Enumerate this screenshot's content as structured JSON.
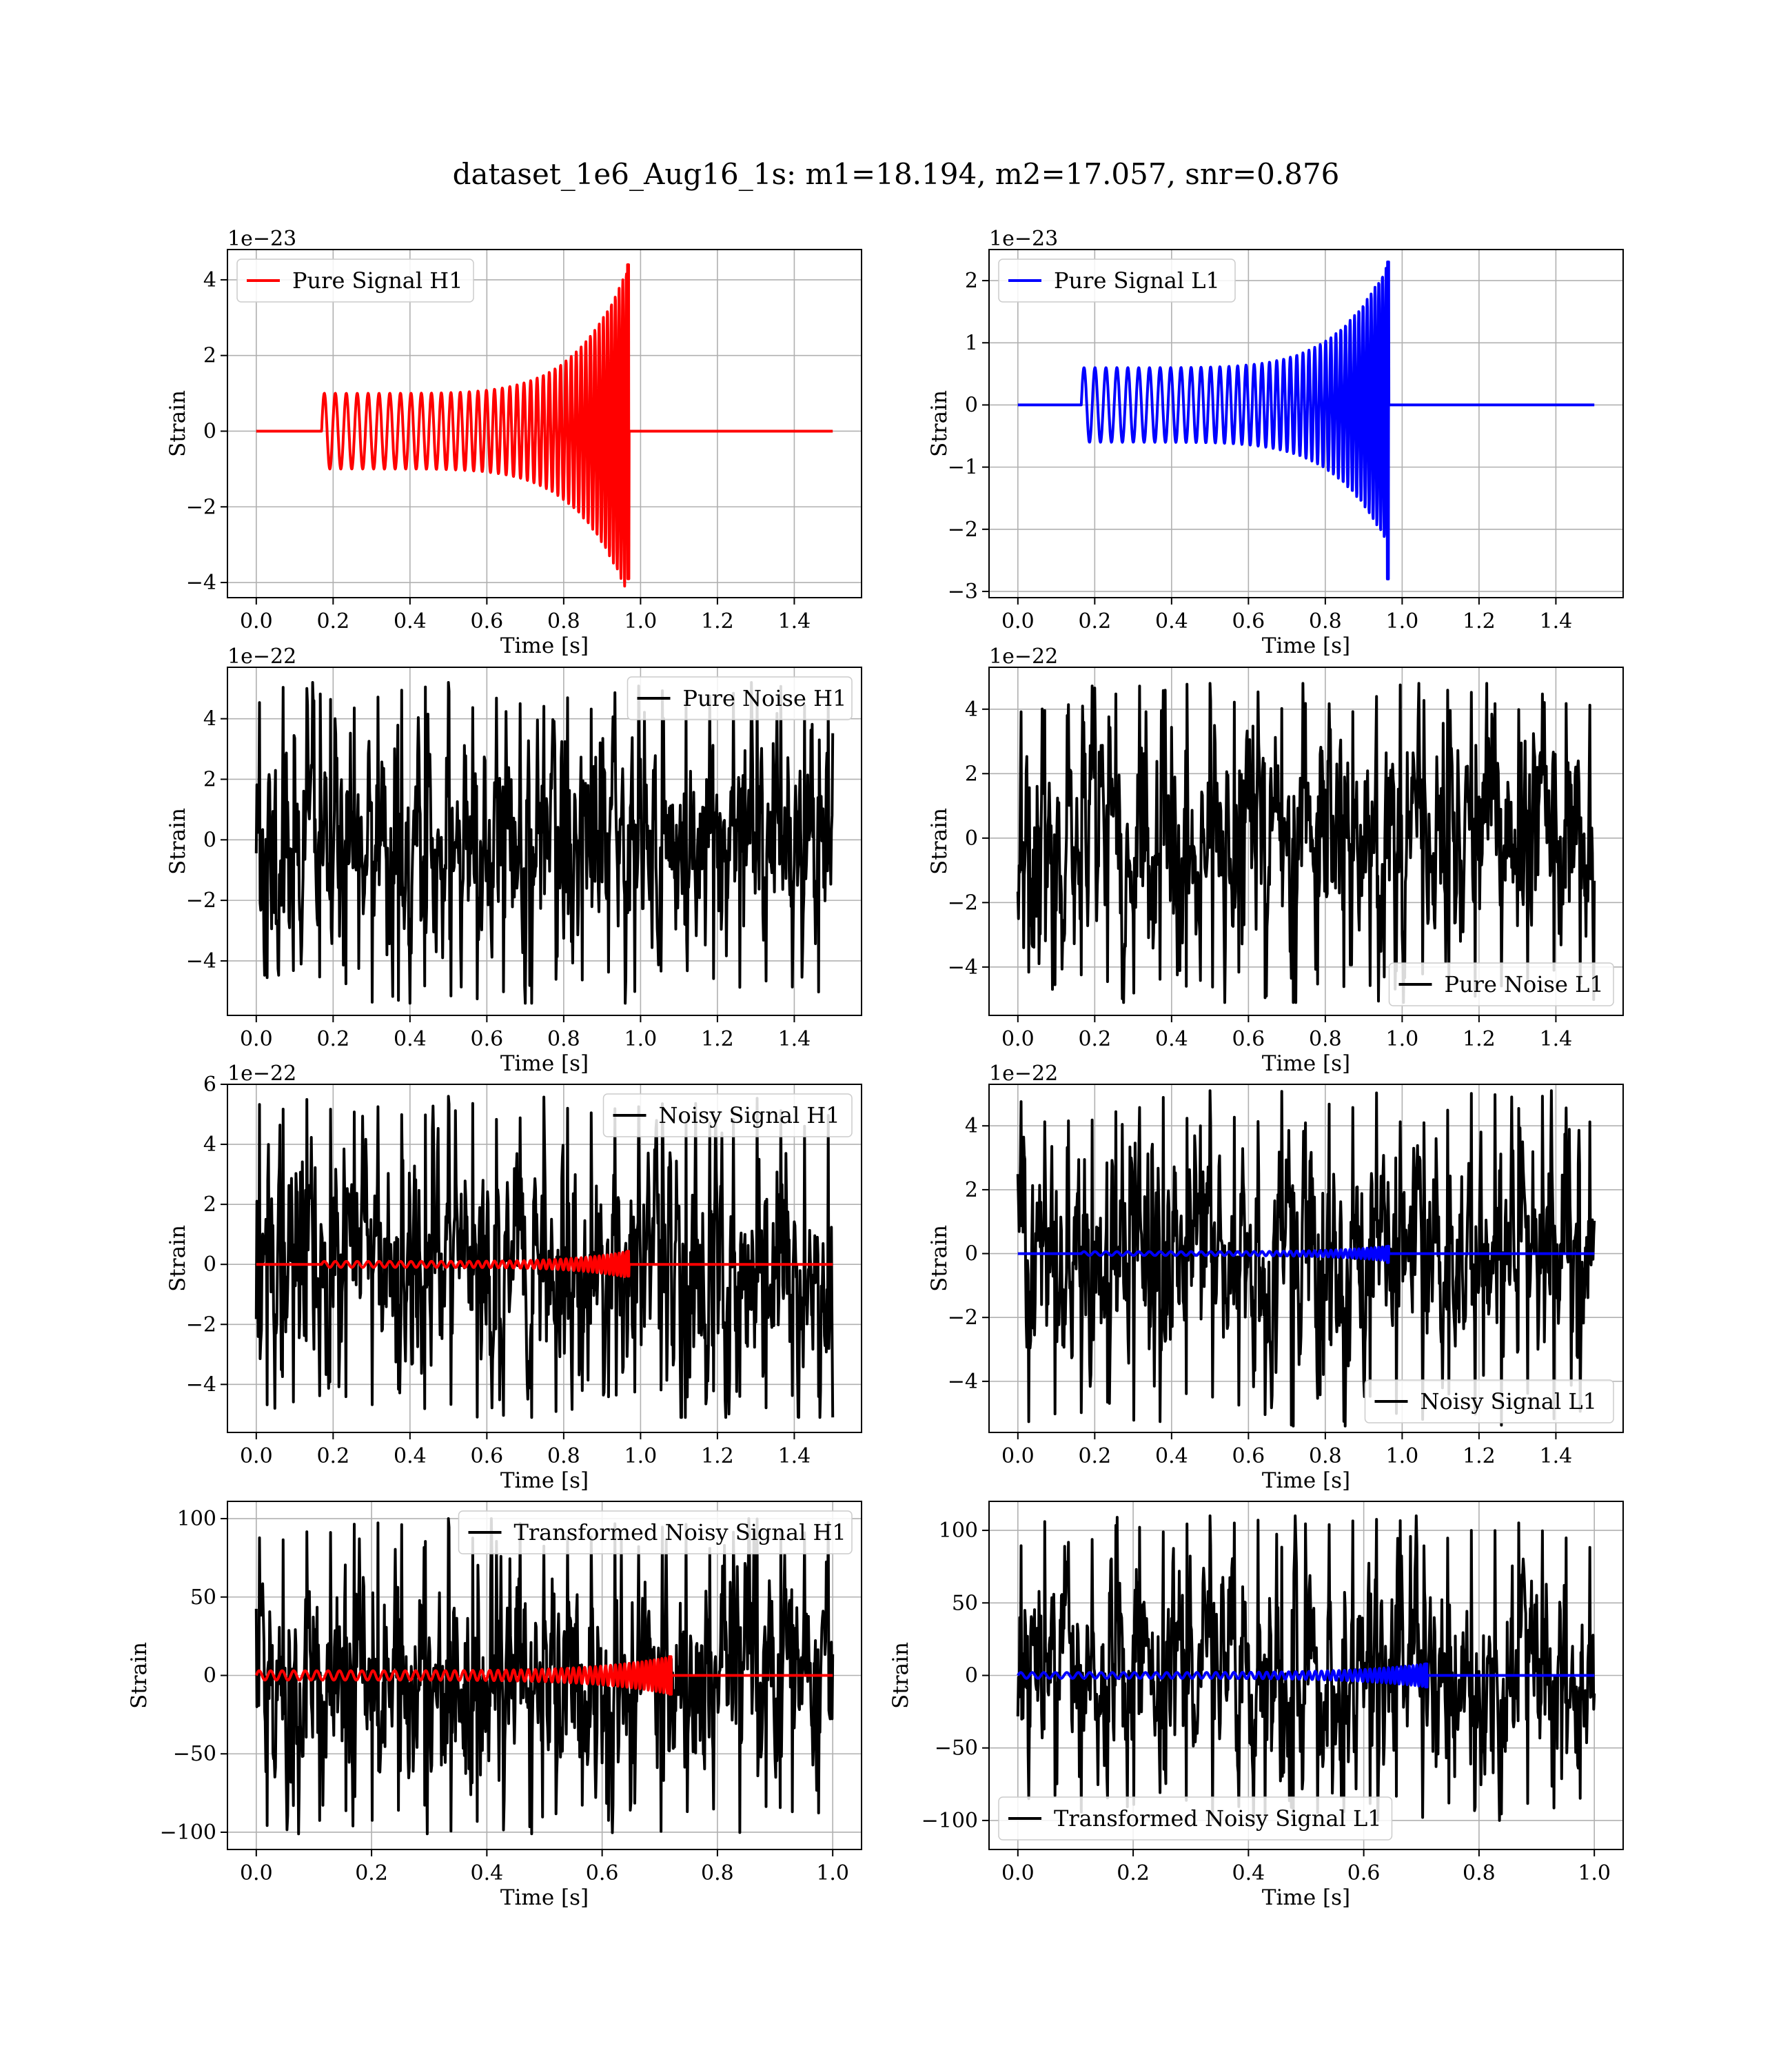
{
  "figure": {
    "title": "dataset_1e6_Aug16_1s: m1=18.194, m2=17.057, snr=0.876"
  },
  "colors": {
    "h1_signal": "#ff0000",
    "l1_signal": "#0000ff",
    "noise": "#000000",
    "grid": "#b0b0b0"
  },
  "chart_data": [
    {
      "id": "pure-signal-h1",
      "type": "line",
      "xlabel": "Time [s]",
      "ylabel": "Strain",
      "offset_text": "1e−23",
      "xlim": [
        -0.075,
        1.575
      ],
      "ylim": [
        -4.4,
        4.8
      ],
      "xticks": [
        0.0,
        0.2,
        0.4,
        0.6,
        0.8,
        1.0,
        1.2,
        1.4
      ],
      "xtick_labels": [
        "0.0",
        "0.2",
        "0.4",
        "0.6",
        "0.8",
        "1.0",
        "1.2",
        "1.4"
      ],
      "yticks": [
        -4,
        -2,
        0,
        2,
        4
      ],
      "ytick_labels": [
        "−4",
        "−2",
        "0",
        "2",
        "4"
      ],
      "legend_position": "top-left",
      "series": [
        {
          "name": "Pure Signal H1",
          "kind": "chirp",
          "color": "#ff0000",
          "x_start": 0.0,
          "x_end": 1.5,
          "t_on": 0.17,
          "t_merge": 0.97,
          "amp_start": 1.0,
          "amp_peak": 4.4,
          "amp_min_peak": -3.9,
          "freq_start": 35,
          "freq_end": 110
        }
      ]
    },
    {
      "id": "pure-signal-l1",
      "type": "line",
      "xlabel": "Time [s]",
      "ylabel": "Strain",
      "offset_text": "1e−23",
      "xlim": [
        -0.075,
        1.575
      ],
      "ylim": [
        -3.1,
        2.5
      ],
      "xticks": [
        0.0,
        0.2,
        0.4,
        0.6,
        0.8,
        1.0,
        1.2,
        1.4
      ],
      "xtick_labels": [
        "0.0",
        "0.2",
        "0.4",
        "0.6",
        "0.8",
        "1.0",
        "1.2",
        "1.4"
      ],
      "yticks": [
        -3,
        -2,
        -1,
        0,
        1,
        2
      ],
      "ytick_labels": [
        "−3",
        "−2",
        "−1",
        "0",
        "1",
        "2"
      ],
      "legend_position": "top-left",
      "series": [
        {
          "name": "Pure Signal L1",
          "kind": "chirp",
          "color": "#0000ff",
          "x_start": 0.0,
          "x_end": 1.5,
          "t_on": 0.165,
          "t_merge": 0.965,
          "amp_start": 0.6,
          "amp_peak": 2.3,
          "amp_min_peak": -2.8,
          "freq_start": 35,
          "freq_end": 110
        }
      ]
    },
    {
      "id": "pure-noise-h1",
      "type": "line",
      "xlabel": "Time [s]",
      "ylabel": "Strain",
      "offset_text": "1e−22",
      "xlim": [
        -0.075,
        1.575
      ],
      "ylim": [
        -5.8,
        5.7
      ],
      "xticks": [
        0.0,
        0.2,
        0.4,
        0.6,
        0.8,
        1.0,
        1.2,
        1.4
      ],
      "xtick_labels": [
        "0.0",
        "0.2",
        "0.4",
        "0.6",
        "0.8",
        "1.0",
        "1.2",
        "1.4"
      ],
      "yticks": [
        -4,
        -2,
        0,
        2,
        4
      ],
      "ytick_labels": [
        "−4",
        "−2",
        "0",
        "2",
        "4"
      ],
      "legend_position": "top-right",
      "series": [
        {
          "name": "Pure Noise H1",
          "kind": "noise",
          "color": "#000000",
          "x_start": 0.0,
          "x_end": 1.5,
          "amp": 1.6,
          "y_max": 5.2,
          "y_min": -5.4,
          "seed": 11
        }
      ]
    },
    {
      "id": "pure-noise-l1",
      "type": "line",
      "xlabel": "Time [s]",
      "ylabel": "Strain",
      "offset_text": "1e−22",
      "xlim": [
        -0.075,
        1.575
      ],
      "ylim": [
        -5.5,
        5.3
      ],
      "xticks": [
        0.0,
        0.2,
        0.4,
        0.6,
        0.8,
        1.0,
        1.2,
        1.4
      ],
      "xtick_labels": [
        "0.0",
        "0.2",
        "0.4",
        "0.6",
        "0.8",
        "1.0",
        "1.2",
        "1.4"
      ],
      "yticks": [
        -4,
        -2,
        0,
        2,
        4
      ],
      "ytick_labels": [
        "−4",
        "−2",
        "0",
        "2",
        "4"
      ],
      "legend_position": "bottom-right",
      "series": [
        {
          "name": "Pure Noise L1",
          "kind": "noise",
          "color": "#000000",
          "x_start": 0.0,
          "x_end": 1.5,
          "amp": 1.5,
          "y_max": 4.8,
          "y_min": -5.1,
          "seed": 23
        }
      ]
    },
    {
      "id": "noisy-signal-h1",
      "type": "line",
      "xlabel": "Time [s]",
      "ylabel": "Strain",
      "offset_text": "1e−22",
      "xlim": [
        -0.075,
        1.575
      ],
      "ylim": [
        -5.6,
        6.0
      ],
      "xticks": [
        0.0,
        0.2,
        0.4,
        0.6,
        0.8,
        1.0,
        1.2,
        1.4
      ],
      "xtick_labels": [
        "0.0",
        "0.2",
        "0.4",
        "0.6",
        "0.8",
        "1.0",
        "1.2",
        "1.4"
      ],
      "yticks": [
        -4,
        -2,
        0,
        2,
        4,
        6
      ],
      "ytick_labels": [
        "−4",
        "−2",
        "0",
        "2",
        "4",
        "6"
      ],
      "legend_position": "top-right",
      "series": [
        {
          "name": "Noisy Signal H1",
          "kind": "noise",
          "color": "#000000",
          "x_start": 0.0,
          "x_end": 1.5,
          "amp": 1.65,
          "y_max": 5.6,
          "y_min": -5.1,
          "seed": 37
        },
        {
          "name": "",
          "kind": "chirp",
          "color": "#ff0000",
          "x_start": 0.0,
          "x_end": 1.5,
          "t_on": 0.17,
          "t_merge": 0.97,
          "amp_start": 0.1,
          "amp_peak": 0.44,
          "amp_min_peak": -0.39,
          "freq_start": 35,
          "freq_end": 110
        }
      ]
    },
    {
      "id": "noisy-signal-l1",
      "type": "line",
      "xlabel": "Time [s]",
      "ylabel": "Strain",
      "offset_text": "1e−22",
      "xlim": [
        -0.075,
        1.575
      ],
      "ylim": [
        -5.6,
        5.3
      ],
      "xticks": [
        0.0,
        0.2,
        0.4,
        0.6,
        0.8,
        1.0,
        1.2,
        1.4
      ],
      "xtick_labels": [
        "0.0",
        "0.2",
        "0.4",
        "0.6",
        "0.8",
        "1.0",
        "1.2",
        "1.4"
      ],
      "yticks": [
        -4,
        -2,
        0,
        2,
        4
      ],
      "ytick_labels": [
        "−4",
        "−2",
        "0",
        "2",
        "4"
      ],
      "legend_position": "bottom-right",
      "series": [
        {
          "name": "Noisy Signal L1",
          "kind": "noise",
          "color": "#000000",
          "x_start": 0.0,
          "x_end": 1.5,
          "amp": 1.5,
          "y_max": 5.1,
          "y_min": -5.4,
          "seed": 41
        },
        {
          "name": "",
          "kind": "chirp",
          "color": "#0000ff",
          "x_start": 0.0,
          "x_end": 1.5,
          "t_on": 0.165,
          "t_merge": 0.965,
          "amp_start": 0.06,
          "amp_peak": 0.23,
          "amp_min_peak": -0.28,
          "freq_start": 35,
          "freq_end": 110
        }
      ]
    },
    {
      "id": "transformed-noisy-signal-h1",
      "type": "line",
      "xlabel": "Time [s]",
      "ylabel": "Strain",
      "offset_text": "",
      "xlim": [
        -0.05,
        1.05
      ],
      "ylim": [
        -111,
        111
      ],
      "xticks": [
        0.0,
        0.2,
        0.4,
        0.6,
        0.8,
        1.0
      ],
      "xtick_labels": [
        "0.0",
        "0.2",
        "0.4",
        "0.6",
        "0.8",
        "1.0"
      ],
      "yticks": [
        -100,
        -50,
        0,
        50,
        100
      ],
      "ytick_labels": [
        "−100",
        "−50",
        "0",
        "50",
        "100"
      ],
      "legend_position": "top-right",
      "series": [
        {
          "name": "Transformed Noisy Signal H1",
          "kind": "noise",
          "color": "#000000",
          "x_start": 0.0,
          "x_end": 1.0,
          "amp": 30,
          "y_max": 100,
          "y_min": -101,
          "seed": 53
        },
        {
          "name": "",
          "kind": "chirp",
          "color": "#ff0000",
          "x_start": 0.0,
          "x_end": 1.0,
          "t_on": 0.0,
          "t_merge": 0.72,
          "amp_start": 3,
          "amp_peak": 12,
          "amp_min_peak": -12,
          "freq_start": 50,
          "freq_end": 160
        }
      ]
    },
    {
      "id": "transformed-noisy-signal-l1",
      "type": "line",
      "xlabel": "Time [s]",
      "ylabel": "Strain",
      "offset_text": "",
      "xlim": [
        -0.05,
        1.05
      ],
      "ylim": [
        -120,
        120
      ],
      "xticks": [
        0.0,
        0.2,
        0.4,
        0.6,
        0.8,
        1.0
      ],
      "xtick_labels": [
        "0.0",
        "0.2",
        "0.4",
        "0.6",
        "0.8",
        "1.0"
      ],
      "yticks": [
        -100,
        -50,
        0,
        50,
        100
      ],
      "ytick_labels": [
        "−100",
        "−50",
        "0",
        "50",
        "100"
      ],
      "legend_position": "bottom-left",
      "series": [
        {
          "name": "Transformed Noisy Signal L1",
          "kind": "noise",
          "color": "#000000",
          "x_start": 0.0,
          "x_end": 1.0,
          "amp": 28,
          "y_max": 110,
          "y_min": -100,
          "seed": 67
        },
        {
          "name": "",
          "kind": "chirp",
          "color": "#0000ff",
          "x_start": 0.0,
          "x_end": 1.0,
          "t_on": 0.0,
          "t_merge": 0.71,
          "amp_start": 2,
          "amp_peak": 8,
          "amp_min_peak": -8,
          "freq_start": 50,
          "freq_end": 160
        }
      ]
    }
  ]
}
